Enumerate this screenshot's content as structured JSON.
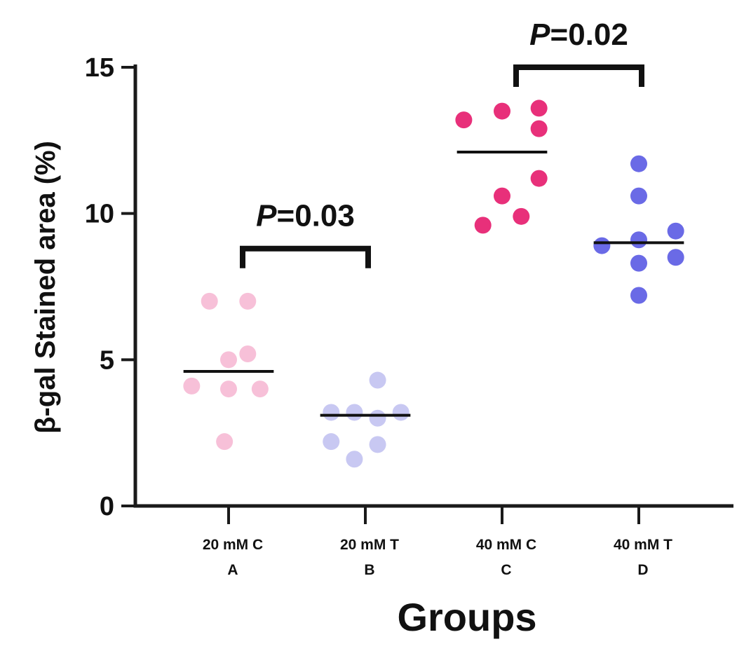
{
  "chart_data": {
    "type": "scatter",
    "title": "",
    "xlabel": "Groups",
    "ylabel": "β-gal Stained area (%)",
    "ylim": [
      0,
      15
    ],
    "yticks": [
      0,
      5,
      10,
      15
    ],
    "grid": false,
    "groups": [
      {
        "name": "20 mM C",
        "letter": "A",
        "color": "#f7c0d8",
        "median": 4.6,
        "points": [
          {
            "offset": -0.14,
            "value": 7.0
          },
          {
            "offset": 0.14,
            "value": 7.0
          },
          {
            "offset": 0.0,
            "value": 5.0
          },
          {
            "offset": 0.14,
            "value": 5.2
          },
          {
            "offset": -0.27,
            "value": 4.1
          },
          {
            "offset": 0.0,
            "value": 4.0
          },
          {
            "offset": 0.23,
            "value": 4.0
          },
          {
            "offset": -0.03,
            "value": 2.2
          }
        ]
      },
      {
        "name": "20 mM T",
        "letter": "B",
        "color": "#c8c8f2",
        "median": 3.1,
        "points": [
          {
            "offset": 0.09,
            "value": 4.3
          },
          {
            "offset": -0.25,
            "value": 3.2
          },
          {
            "offset": -0.08,
            "value": 3.2
          },
          {
            "offset": 0.26,
            "value": 3.2
          },
          {
            "offset": 0.09,
            "value": 3.0
          },
          {
            "offset": -0.25,
            "value": 2.2
          },
          {
            "offset": 0.09,
            "value": 2.1
          },
          {
            "offset": -0.08,
            "value": 1.6
          }
        ]
      },
      {
        "name": "40 mM C",
        "letter": "C",
        "color": "#e8307a",
        "median": 12.1,
        "points": [
          {
            "offset": 0.27,
            "value": 13.6
          },
          {
            "offset": -0.28,
            "value": 13.2
          },
          {
            "offset": 0.0,
            "value": 13.5
          },
          {
            "offset": 0.27,
            "value": 12.9
          },
          {
            "offset": 0.27,
            "value": 11.2
          },
          {
            "offset": 0.0,
            "value": 10.6
          },
          {
            "offset": 0.14,
            "value": 9.9
          },
          {
            "offset": -0.14,
            "value": 9.6
          }
        ]
      },
      {
        "name": "40 mM T",
        "letter": "D",
        "color": "#6a6ae6",
        "median": 9.0,
        "points": [
          {
            "offset": 0.0,
            "value": 11.7
          },
          {
            "offset": 0.0,
            "value": 10.6
          },
          {
            "offset": 0.27,
            "value": 9.4
          },
          {
            "offset": 0.0,
            "value": 9.1
          },
          {
            "offset": -0.27,
            "value": 8.9
          },
          {
            "offset": 0.27,
            "value": 8.5
          },
          {
            "offset": 0.0,
            "value": 8.3
          },
          {
            "offset": 0.0,
            "value": 7.2
          }
        ]
      }
    ],
    "comparisons": [
      {
        "from": 0,
        "to": 1,
        "y": 8.8,
        "p_symbol": "P",
        "p_value": "=0.03"
      },
      {
        "from": 2,
        "to": 3,
        "y": 15.0,
        "p_symbol": "P",
        "p_value": "=0.02"
      }
    ]
  }
}
